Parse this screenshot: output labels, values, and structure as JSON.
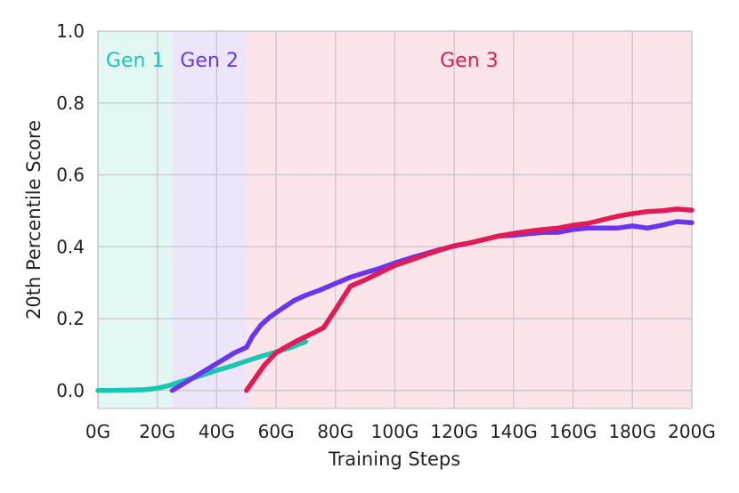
{
  "chart_data": {
    "type": "line",
    "xlabel": "Training Steps",
    "ylabel": "20th Percentile Score",
    "xlim": [
      0,
      200
    ],
    "ylim": [
      -0.05,
      1.0
    ],
    "grid": true,
    "x_ticks": [
      0,
      20,
      40,
      60,
      80,
      100,
      120,
      140,
      160,
      180,
      200
    ],
    "x_tick_labels": [
      "0G",
      "20G",
      "40G",
      "60G",
      "80G",
      "100G",
      "120G",
      "140G",
      "160G",
      "180G",
      "200G"
    ],
    "y_ticks": [
      0.0,
      0.2,
      0.4,
      0.6,
      0.8,
      1.0
    ],
    "y_tick_labels": [
      "0.0",
      "0.2",
      "0.4",
      "0.6",
      "0.8",
      "1.0"
    ],
    "regions": [
      {
        "label": "Gen 1",
        "x_start": 0,
        "x_end": 25,
        "color": "#19c7b0",
        "fill": "#e3f7f5"
      },
      {
        "label": "Gen 2",
        "x_start": 25,
        "x_end": 50,
        "color": "#6a35ec",
        "fill": "#ede6fb"
      },
      {
        "label": "Gen 3",
        "x_start": 50,
        "x_end": 200,
        "color": "#e21a55",
        "fill": "#fbe4ea"
      }
    ],
    "series": [
      {
        "color": "#19c7b0",
        "x": [
          0,
          5,
          10,
          15,
          18,
          21,
          24,
          27,
          30,
          35,
          40,
          45,
          50,
          55,
          60,
          65,
          70
        ],
        "y": [
          0.0,
          0.0,
          0.001,
          0.002,
          0.004,
          0.008,
          0.014,
          0.022,
          0.03,
          0.042,
          0.056,
          0.068,
          0.082,
          0.095,
          0.107,
          0.12,
          0.136
        ]
      },
      {
        "color": "#6a35ec",
        "x": [
          25,
          28,
          31,
          34,
          37,
          40,
          43,
          46,
          50,
          52,
          55,
          58,
          62,
          66,
          70,
          75,
          80,
          85,
          90,
          95,
          100,
          105,
          110,
          115,
          120,
          125,
          130,
          135,
          140,
          145,
          150,
          155,
          160,
          165,
          170,
          175,
          180,
          185,
          190,
          195,
          200
        ],
        "y": [
          0.0,
          0.015,
          0.03,
          0.045,
          0.06,
          0.075,
          0.09,
          0.105,
          0.12,
          0.15,
          0.183,
          0.205,
          0.228,
          0.25,
          0.265,
          0.28,
          0.298,
          0.315,
          0.328,
          0.34,
          0.355,
          0.368,
          0.38,
          0.392,
          0.402,
          0.41,
          0.42,
          0.43,
          0.432,
          0.436,
          0.44,
          0.44,
          0.448,
          0.452,
          0.452,
          0.452,
          0.458,
          0.452,
          0.46,
          0.47,
          0.467
        ]
      },
      {
        "color": "#e21a55",
        "x": [
          50,
          53,
          56,
          60,
          63,
          67,
          70,
          73,
          76,
          80,
          85,
          90,
          95,
          100,
          105,
          110,
          115,
          120,
          125,
          130,
          135,
          140,
          145,
          150,
          155,
          160,
          165,
          170,
          175,
          180,
          185,
          190,
          195,
          200
        ],
        "y": [
          0.0,
          0.035,
          0.07,
          0.105,
          0.12,
          0.138,
          0.15,
          0.162,
          0.175,
          0.225,
          0.29,
          0.308,
          0.328,
          0.348,
          0.362,
          0.377,
          0.39,
          0.403,
          0.41,
          0.42,
          0.43,
          0.437,
          0.443,
          0.448,
          0.452,
          0.46,
          0.465,
          0.475,
          0.485,
          0.492,
          0.498,
          0.5,
          0.505,
          0.502
        ]
      }
    ]
  }
}
